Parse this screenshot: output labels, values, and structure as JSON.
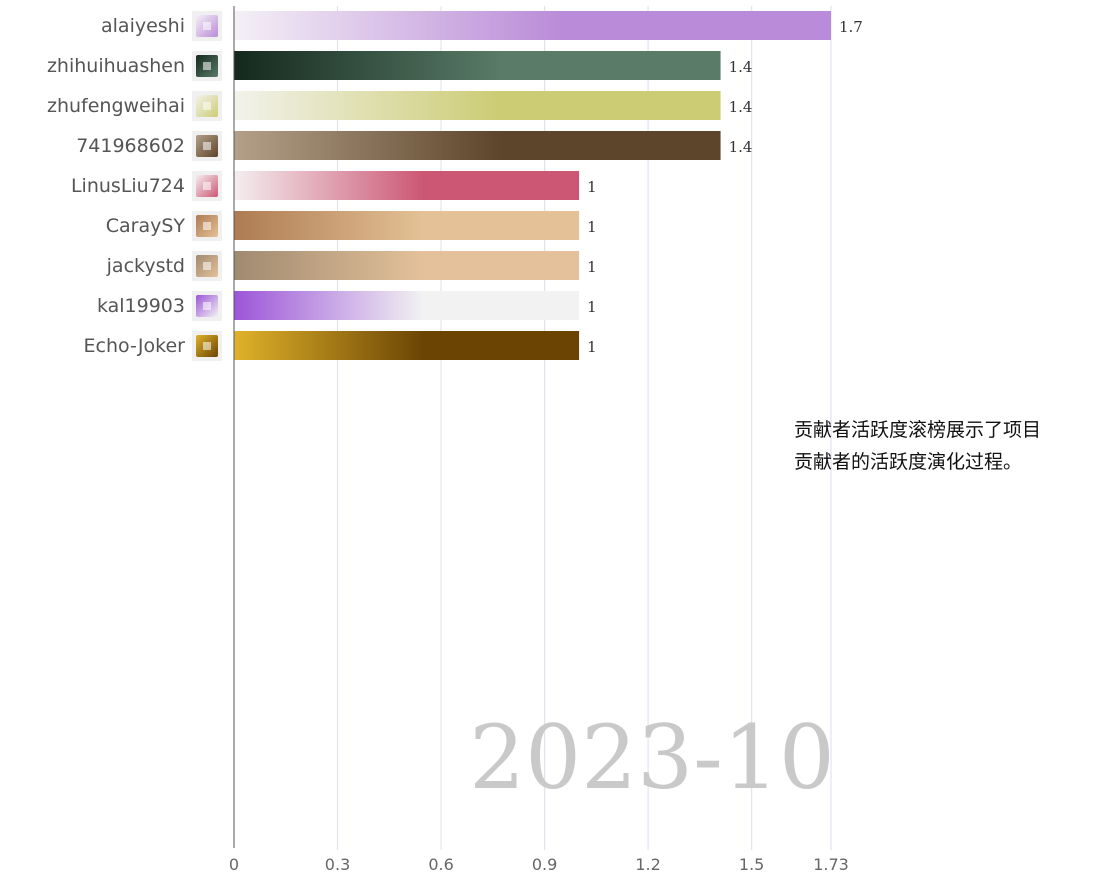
{
  "chart_data": {
    "type": "bar",
    "orientation": "horizontal",
    "period": "2023-10",
    "categories": [
      "alaiyeshi",
      "zhihuihuashen",
      "zhufengweihai",
      "741968602",
      "LinusLiu724",
      "CaraySY",
      "jackystd",
      "kal19903",
      "Echo-Joker"
    ],
    "values": [
      1.73,
      1.41,
      1.41,
      1.41,
      1.0,
      1.0,
      1.0,
      1.0,
      1.0
    ],
    "value_labels": [
      "1.7",
      "1.4",
      "1.4",
      "1.4",
      "1",
      "1",
      "1",
      "1",
      "1"
    ],
    "bar_colors": [
      [
        "#f4f0f6",
        "#ba8bd8"
      ],
      [
        "#14291c",
        "#5a7b68"
      ],
      [
        "#f2f2ec",
        "#cccc74"
      ],
      [
        "#b4a089",
        "#5d452b"
      ],
      [
        "#f4eef0",
        "#cc5774"
      ],
      [
        "#ae7b52",
        "#e4c196"
      ],
      [
        "#a08a70",
        "#e4c19a"
      ],
      [
        "#9c55d8",
        "#f2f2f2"
      ],
      [
        "#e0b22a",
        "#6b4404"
      ]
    ],
    "x_ticks": [
      0,
      0.3,
      0.6,
      0.9,
      1.2,
      1.5,
      1.73
    ],
    "x_tick_labels": [
      "0",
      "0.3",
      "0.6",
      "0.9",
      "1.2",
      "1.5",
      "1.73"
    ],
    "xlim": [
      0,
      1.73
    ],
    "grid": true,
    "avatars": [
      "identicon-purple",
      "dark-ring-photo",
      "identicon-olive",
      "dog-photo",
      "identicon-crimson",
      "dog-photo",
      "cartoon-face",
      "identicon-violet",
      "cartoon-figure"
    ]
  },
  "description": [
    "贡献者活跃度滚榜展示了项目",
    "贡献者的活跃度演化过程。"
  ]
}
